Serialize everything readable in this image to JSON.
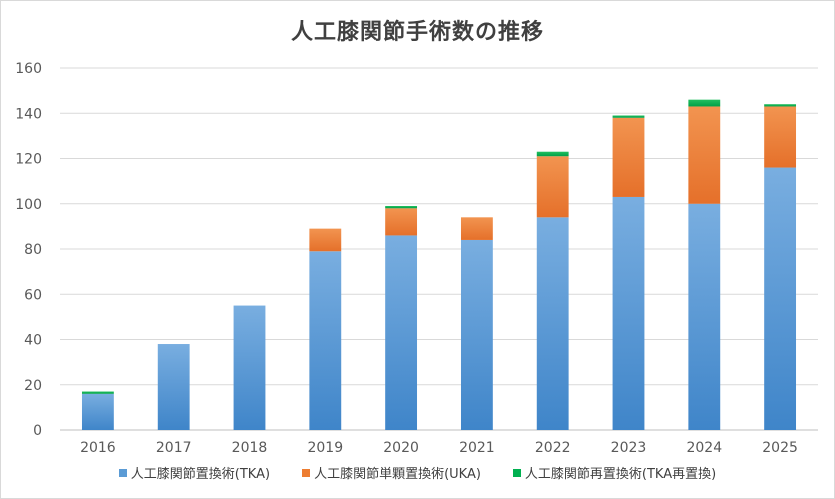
{
  "chart_data": {
    "type": "bar",
    "stacked": true,
    "title": "人工膝関節手術数の推移",
    "categories": [
      "2016",
      "2017",
      "2018",
      "2019",
      "2020",
      "2021",
      "2022",
      "2023",
      "2024",
      "2025"
    ],
    "series": [
      {
        "name": "人工膝関節置換術(TKA)",
        "color": "#5b9bd5",
        "values": [
          16,
          38,
          55,
          79,
          86,
          84,
          94,
          103,
          100,
          116
        ]
      },
      {
        "name": "人工膝関節単顆置換術(UKA)",
        "color": "#ed7d31",
        "values": [
          0,
          0,
          0,
          10,
          12,
          10,
          27,
          35,
          43,
          27
        ]
      },
      {
        "name": "人工膝関節再置換術(TKA再置換)",
        "color": "#00b050",
        "values": [
          1,
          0,
          0,
          0,
          1,
          0,
          2,
          1,
          3,
          1
        ]
      }
    ],
    "y_ticks": [
      "0",
      "20",
      "40",
      "60",
      "80",
      "100",
      "120",
      "140",
      "160"
    ],
    "ylim": [
      0,
      160
    ],
    "grid": true,
    "legend_position": "bottom"
  }
}
